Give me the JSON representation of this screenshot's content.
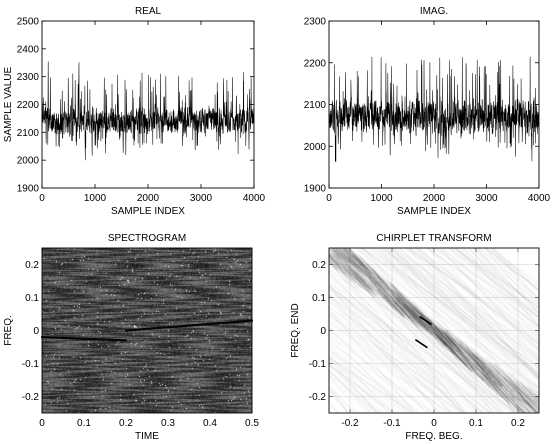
{
  "chart_data": [
    {
      "type": "line",
      "title": "REAL",
      "xlabel": "SAMPLE INDEX",
      "ylabel": "SAMPLE VALUE",
      "xlim": [
        0,
        4000
      ],
      "ylim": [
        1900,
        2500
      ],
      "xticks": [
        0,
        1000,
        2000,
        3000,
        4000
      ],
      "yticks": [
        1900,
        2000,
        2100,
        2200,
        2300,
        2400,
        2500
      ],
      "series": [
        {
          "signal": "noisy time series",
          "mean": 2140,
          "core_band": [
            2080,
            2200
          ],
          "extremes": [
            2000,
            2390
          ],
          "samples": 4000
        }
      ],
      "grid": false
    },
    {
      "type": "line",
      "title": "IMAG.",
      "xlabel": "SAMPLE INDEX",
      "ylabel": "",
      "xlim": [
        0,
        4000
      ],
      "ylim": [
        1900,
        2300
      ],
      "xticks": [
        0,
        1000,
        2000,
        3000,
        4000
      ],
      "yticks": [
        1900,
        2000,
        2100,
        2200,
        2300
      ],
      "series": [
        {
          "signal": "noisy time series",
          "mean": 2070,
          "core_band": [
            2020,
            2120
          ],
          "extremes": [
            1960,
            2285
          ],
          "samples": 4000
        }
      ],
      "grid": false
    },
    {
      "type": "heatmap",
      "title": "SPECTROGRAM",
      "xlabel": "TIME",
      "ylabel": "FREQ.",
      "xlim": [
        0,
        0.5
      ],
      "ylim": [
        -0.25,
        0.25
      ],
      "xticks": [
        0,
        0.1,
        0.2,
        0.3,
        0.4,
        0.5
      ],
      "yticks": [
        -0.2,
        -0.1,
        0,
        0.1,
        0.2
      ],
      "colormap": "gray",
      "features": [
        {
          "kind": "dark chirp line",
          "from": [
            0,
            -0.02
          ],
          "to": [
            0.2,
            -0.03
          ]
        },
        {
          "kind": "dark chirp line",
          "from": [
            0.2,
            0.0
          ],
          "to": [
            0.5,
            0.03
          ]
        }
      ],
      "grid": false
    },
    {
      "type": "heatmap",
      "title": "CHIRPLET TRANSFORM",
      "xlabel": "FREQ. BEG.",
      "ylabel": "FREQ. END",
      "xlim": [
        -0.25,
        0.25
      ],
      "ylim": [
        -0.25,
        0.25
      ],
      "xticks": [
        -0.2,
        -0.1,
        0,
        0.1,
        0.2
      ],
      "yticks": [
        -0.2,
        -0.1,
        0,
        0.1,
        0.2
      ],
      "colormap": "inverted gray",
      "features": [
        {
          "kind": "diagonal energy ridge",
          "from": [
            -0.25,
            0.25
          ],
          "to": [
            0.25,
            -0.25
          ]
        },
        {
          "kind": "peak",
          "at": [
            -0.02,
            0.03
          ]
        },
        {
          "kind": "peak",
          "at": [
            -0.03,
            -0.04
          ]
        }
      ],
      "grid": true
    }
  ]
}
